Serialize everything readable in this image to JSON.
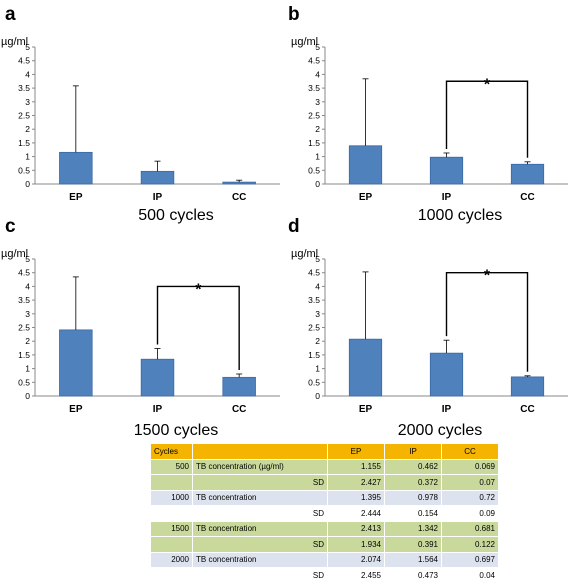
{
  "chart_data": [
    {
      "type": "bar",
      "panel": "a",
      "title": "500 cycles",
      "ylabel": "µg/ml",
      "ylim": [
        0,
        5
      ],
      "yticks": [
        "0",
        "0.5",
        "1",
        "1.5",
        "2",
        "2.5",
        "3",
        "3.5",
        "4",
        "4.5",
        "5"
      ],
      "categories": [
        "EP",
        "IP",
        "CC"
      ],
      "values": [
        1.155,
        0.462,
        0.069
      ],
      "errors": [
        2.427,
        0.372,
        0.07
      ],
      "significance": []
    },
    {
      "type": "bar",
      "panel": "b",
      "title": "1000 cycles",
      "ylabel": "µg/ml",
      "ylim": [
        0,
        5
      ],
      "yticks": [
        "0",
        "0.5",
        "1",
        "1.5",
        "2",
        "2.5",
        "3",
        "3.5",
        "4",
        "4.5",
        "5"
      ],
      "categories": [
        "EP",
        "IP",
        "CC"
      ],
      "values": [
        1.395,
        0.978,
        0.72
      ],
      "errors": [
        2.444,
        0.154,
        0.09
      ],
      "significance": [
        {
          "from": "IP",
          "to": "CC",
          "mark": "*",
          "level": 3.75
        }
      ]
    },
    {
      "type": "bar",
      "panel": "c",
      "title": "1500 cycles",
      "ylabel": "µg/ml",
      "ylim": [
        0,
        5
      ],
      "yticks": [
        "0",
        "0.5",
        "1",
        "1.5",
        "2",
        "2.5",
        "3",
        "3.5",
        "4",
        "4.5",
        "5"
      ],
      "categories": [
        "EP",
        "IP",
        "CC"
      ],
      "values": [
        2.413,
        1.342,
        0.681
      ],
      "errors": [
        1.934,
        0.391,
        0.122
      ],
      "significance": [
        {
          "from": "IP",
          "to": "CC",
          "mark": "*",
          "level": 4.0
        }
      ]
    },
    {
      "type": "bar",
      "panel": "d",
      "title": "2000 cycles",
      "ylabel": "µg/ml",
      "ylim": [
        0,
        5
      ],
      "yticks": [
        "0",
        "0.5",
        "1",
        "1.5",
        "2",
        "2.5",
        "3",
        "3.5",
        "4",
        "4.5",
        "5"
      ],
      "categories": [
        "EP",
        "IP",
        "CC"
      ],
      "values": [
        2.074,
        1.564,
        0.697
      ],
      "errors": [
        2.455,
        0.473,
        0.04
      ],
      "significance": [
        {
          "from": "IP",
          "to": "CC",
          "mark": "*",
          "level": 4.5
        }
      ]
    },
    {
      "type": "table",
      "header": [
        "Cycles",
        "",
        "EP",
        "IP",
        "CC"
      ],
      "rows": [
        [
          "500",
          "TB concentration (µg/ml)",
          "1.155",
          "0.462",
          "0.069"
        ],
        [
          "",
          "SD",
          "2.427",
          "0.372",
          "0.07"
        ],
        [
          "1000",
          "TB concentration",
          "1.395",
          "0.978",
          "0.72"
        ],
        [
          "",
          "SD",
          "2.444",
          "0.154",
          "0.09"
        ],
        [
          "1500",
          "TB concentration",
          "2.413",
          "1.342",
          "0.681"
        ],
        [
          "",
          "SD",
          "1.934",
          "0.391",
          "0.122"
        ],
        [
          "2000",
          "TB concentration",
          "2.074",
          "1.564",
          "0.697"
        ],
        [
          "",
          "SD",
          "2.455",
          "0.473",
          "0.04"
        ]
      ]
    }
  ],
  "colors": {
    "bar": "#4f81bd",
    "bar_edge": "#3a6aa5",
    "axis": "#888888",
    "header": "#f5b400",
    "green_row": "#c9d99c",
    "blue_row": "#dde3ee"
  }
}
